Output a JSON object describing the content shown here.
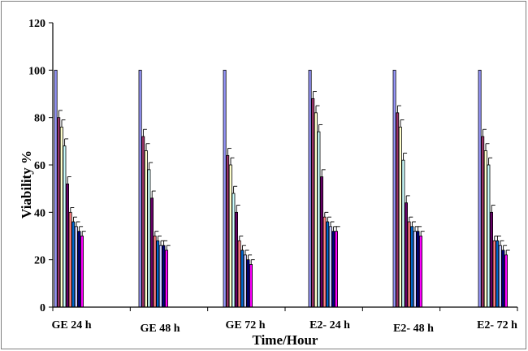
{
  "chart_data": {
    "type": "bar",
    "title": "",
    "xlabel": "Time/Hour",
    "ylabel": "Viability %",
    "ylim": [
      0,
      120
    ],
    "yticks": [
      0,
      20,
      40,
      60,
      80,
      100,
      120
    ],
    "grid": false,
    "legend": "none",
    "categories": [
      "GE 24 h",
      "GE 48 h",
      "GE 72 h",
      "E2- 24 h",
      "E2- 48 h",
      "E2- 72 h"
    ],
    "series_colors": [
      "#9999ff",
      "#993366",
      "#ffffcc",
      "#ccffff",
      "#660066",
      "#ff8080",
      "#0066cc",
      "#ccccff",
      "#000080",
      "#ff00ff"
    ],
    "series": [
      {
        "values": [
          100,
          100,
          100,
          100,
          100,
          100
        ]
      },
      {
        "values": [
          80,
          72,
          64,
          88,
          82,
          72
        ]
      },
      {
        "values": [
          76,
          66,
          60,
          82,
          76,
          66
        ]
      },
      {
        "values": [
          68,
          58,
          48,
          74,
          62,
          60
        ]
      },
      {
        "values": [
          52,
          46,
          40,
          55,
          44,
          40
        ]
      },
      {
        "values": [
          40,
          30,
          28,
          38,
          36,
          28
        ]
      },
      {
        "values": [
          36,
          28,
          24,
          36,
          34,
          28
        ]
      },
      {
        "values": [
          34,
          26,
          22,
          34,
          32,
          26
        ]
      },
      {
        "values": [
          32,
          26,
          20,
          32,
          32,
          24
        ]
      },
      {
        "values": [
          30,
          24,
          18,
          32,
          30,
          22
        ]
      }
    ],
    "errors": [
      [
        0,
        0,
        0,
        0,
        0,
        0
      ],
      [
        3,
        3,
        3,
        3,
        3,
        3
      ],
      [
        3,
        3,
        3,
        3,
        3,
        3
      ],
      [
        3,
        3,
        3,
        3,
        3,
        3
      ],
      [
        3,
        3,
        3,
        3,
        3,
        3
      ],
      [
        2,
        2,
        2,
        2,
        2,
        2
      ],
      [
        2,
        2,
        2,
        2,
        2,
        2
      ],
      [
        2,
        2,
        2,
        2,
        2,
        2
      ],
      [
        2,
        2,
        2,
        2,
        2,
        2
      ],
      [
        2,
        2,
        2,
        2,
        2,
        2
      ]
    ]
  }
}
